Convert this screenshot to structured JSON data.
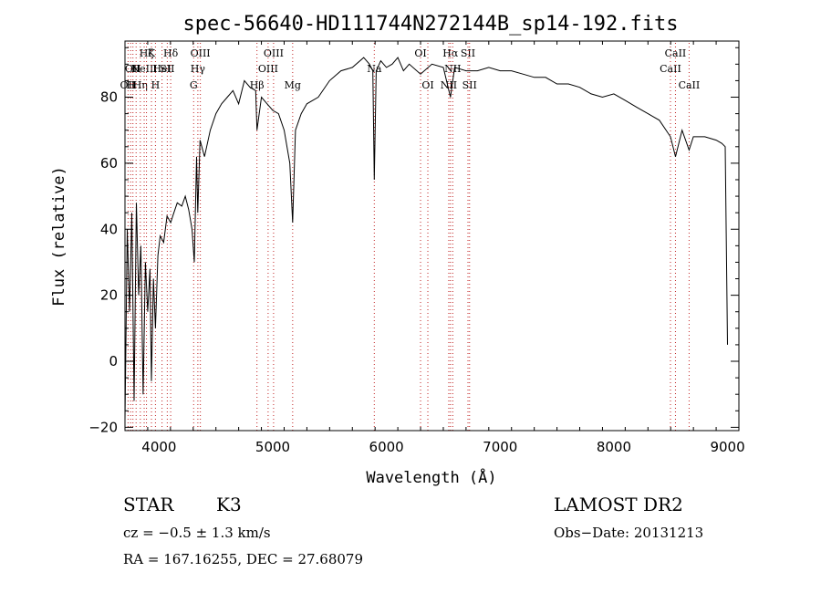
{
  "chart_data": {
    "type": "line",
    "title": "spec-56640-HD111744N272144B_sp14-192.fits",
    "xlabel": "Wavelength (Å)",
    "ylabel": "Flux (relative)",
    "xlim": [
      3700,
      9100
    ],
    "ylim": [
      -21,
      97
    ],
    "x_ticks": [
      4000,
      5000,
      6000,
      7000,
      8000,
      9000
    ],
    "y_ticks": [
      -20,
      0,
      20,
      40,
      60,
      80
    ],
    "x_tick_labels": [
      "4000",
      "5000",
      "6000",
      "7000",
      "8000",
      "9000"
    ],
    "y_tick_labels": [
      "−20",
      "0",
      "20",
      "40",
      "60",
      "80"
    ],
    "grid": false,
    "series": [
      {
        "x": [
          3700,
          3720,
          3740,
          3760,
          3780,
          3800,
          3820,
          3840,
          3860,
          3880,
          3900,
          3920,
          3933,
          3950,
          3968,
          3990,
          4010,
          4040,
          4070,
          4102,
          4130,
          4160,
          4200,
          4230,
          4260,
          4290,
          4310,
          4330,
          4340,
          4360,
          4400,
          4450,
          4500,
          4550,
          4600,
          4650,
          4700,
          4750,
          4800,
          4850,
          4861,
          4900,
          4950,
          5000,
          5050,
          5100,
          5150,
          5175,
          5200,
          5250,
          5300,
          5400,
          5500,
          5600,
          5700,
          5800,
          5850,
          5880,
          5893,
          5910,
          5950,
          6000,
          6050,
          6100,
          6150,
          6200,
          6300,
          6400,
          6500,
          6563,
          6600,
          6700,
          6800,
          6900,
          7000,
          7100,
          7200,
          7300,
          7400,
          7500,
          7600,
          7700,
          7800,
          7900,
          8000,
          8100,
          8200,
          8300,
          8400,
          8498,
          8542,
          8600,
          8662,
          8700,
          8800,
          8900,
          8950,
          8980,
          9000
        ],
        "y": [
          -18,
          40,
          15,
          45,
          -12,
          48,
          20,
          35,
          -10,
          30,
          15,
          28,
          -6,
          25,
          10,
          32,
          38,
          36,
          44,
          42,
          45,
          48,
          47,
          50,
          46,
          40,
          30,
          62,
          45,
          67,
          62,
          70,
          75,
          78,
          80,
          82,
          78,
          85,
          83,
          82,
          70,
          80,
          78,
          76,
          75,
          70,
          60,
          42,
          70,
          75,
          78,
          80,
          85,
          88,
          89,
          92,
          90,
          88,
          55,
          88,
          91,
          89,
          90,
          92,
          88,
          90,
          87,
          90,
          89,
          80,
          89,
          88,
          88,
          89,
          88,
          88,
          87,
          86,
          86,
          84,
          84,
          83,
          81,
          80,
          81,
          79,
          77,
          75,
          73,
          68,
          62,
          70,
          64,
          68,
          68,
          67,
          66,
          65,
          5
        ]
      }
    ],
    "line_markers": [
      {
        "wl": 3727,
        "row": 2,
        "label": "OII",
        "color": "#c02020"
      },
      {
        "wl": 3750,
        "row": 2,
        "label": "H",
        "color": "#c02020"
      },
      {
        "wl": 3770,
        "row": 1,
        "label": "OII",
        "color": "#c02020"
      },
      {
        "wl": 3798,
        "row": 1,
        "label": "H",
        "color": "#c02020"
      },
      {
        "wl": 3835,
        "row": 2,
        "label": "Hη",
        "color": "#c02020"
      },
      {
        "wl": 3869,
        "row": 1,
        "label": "NeIII",
        "color": "#c02020"
      },
      {
        "wl": 3889,
        "row": 0,
        "label": "Hζ",
        "color": "#c02020"
      },
      {
        "wl": 3933,
        "row": 0,
        "label": "K",
        "color": "#c02020"
      },
      {
        "wl": 3968,
        "row": 2,
        "label": "H",
        "color": "#c02020"
      },
      {
        "wl": 4026,
        "row": 1,
        "label": "HeI",
        "color": "#c02020"
      },
      {
        "wl": 4072,
        "row": 1,
        "label": "SII",
        "color": "#c02020"
      },
      {
        "wl": 4102,
        "row": 0,
        "label": "Hδ",
        "color": "#c02020"
      },
      {
        "wl": 4304,
        "row": 2,
        "label": "G",
        "color": "#c02020"
      },
      {
        "wl": 4341,
        "row": 1,
        "label": "Hγ",
        "color": "#c02020"
      },
      {
        "wl": 4363,
        "row": 0,
        "label": "OIII",
        "color": "#c02020"
      },
      {
        "wl": 4861,
        "row": 2,
        "label": "Hβ",
        "color": "#c02020"
      },
      {
        "wl": 4959,
        "row": 1,
        "label": "OIII",
        "color": "#c02020"
      },
      {
        "wl": 5007,
        "row": 0,
        "label": "OIII",
        "color": "#c02020"
      },
      {
        "wl": 5175,
        "row": 2,
        "label": "Mg",
        "color": "#c02020"
      },
      {
        "wl": 5893,
        "row": 1,
        "label": "Na",
        "color": "#c02020"
      },
      {
        "wl": 6300,
        "row": 0,
        "label": "OI",
        "color": "#c02020"
      },
      {
        "wl": 6364,
        "row": 2,
        "label": "OI",
        "color": "#c02020"
      },
      {
        "wl": 6548,
        "row": 2,
        "label": "NII",
        "color": "#c02020"
      },
      {
        "wl": 6563,
        "row": 0,
        "label": "Hα",
        "color": "#c02020"
      },
      {
        "wl": 6583,
        "row": 1,
        "label": "NII",
        "color": "#c02020"
      },
      {
        "wl": 6717,
        "row": 0,
        "label": "SII",
        "color": "#c02020"
      },
      {
        "wl": 6731,
        "row": 2,
        "label": "SII",
        "color": "#c02020"
      },
      {
        "wl": 8498,
        "row": 1,
        "label": "CaII",
        "color": "#c02020"
      },
      {
        "wl": 8542,
        "row": 0,
        "label": "CaII",
        "color": "#c02020"
      },
      {
        "wl": 8662,
        "row": 2,
        "label": "CaII",
        "color": "#c02020"
      }
    ]
  },
  "info": {
    "object_type": "STAR",
    "subclass": "K3",
    "survey": "LAMOST DR2",
    "redshift": "cz = −0.5 ± 1.3 km/s",
    "obs_date": "Obs−Date: 20131213",
    "coords": "RA = 167.16255, DEC =  27.68079"
  }
}
